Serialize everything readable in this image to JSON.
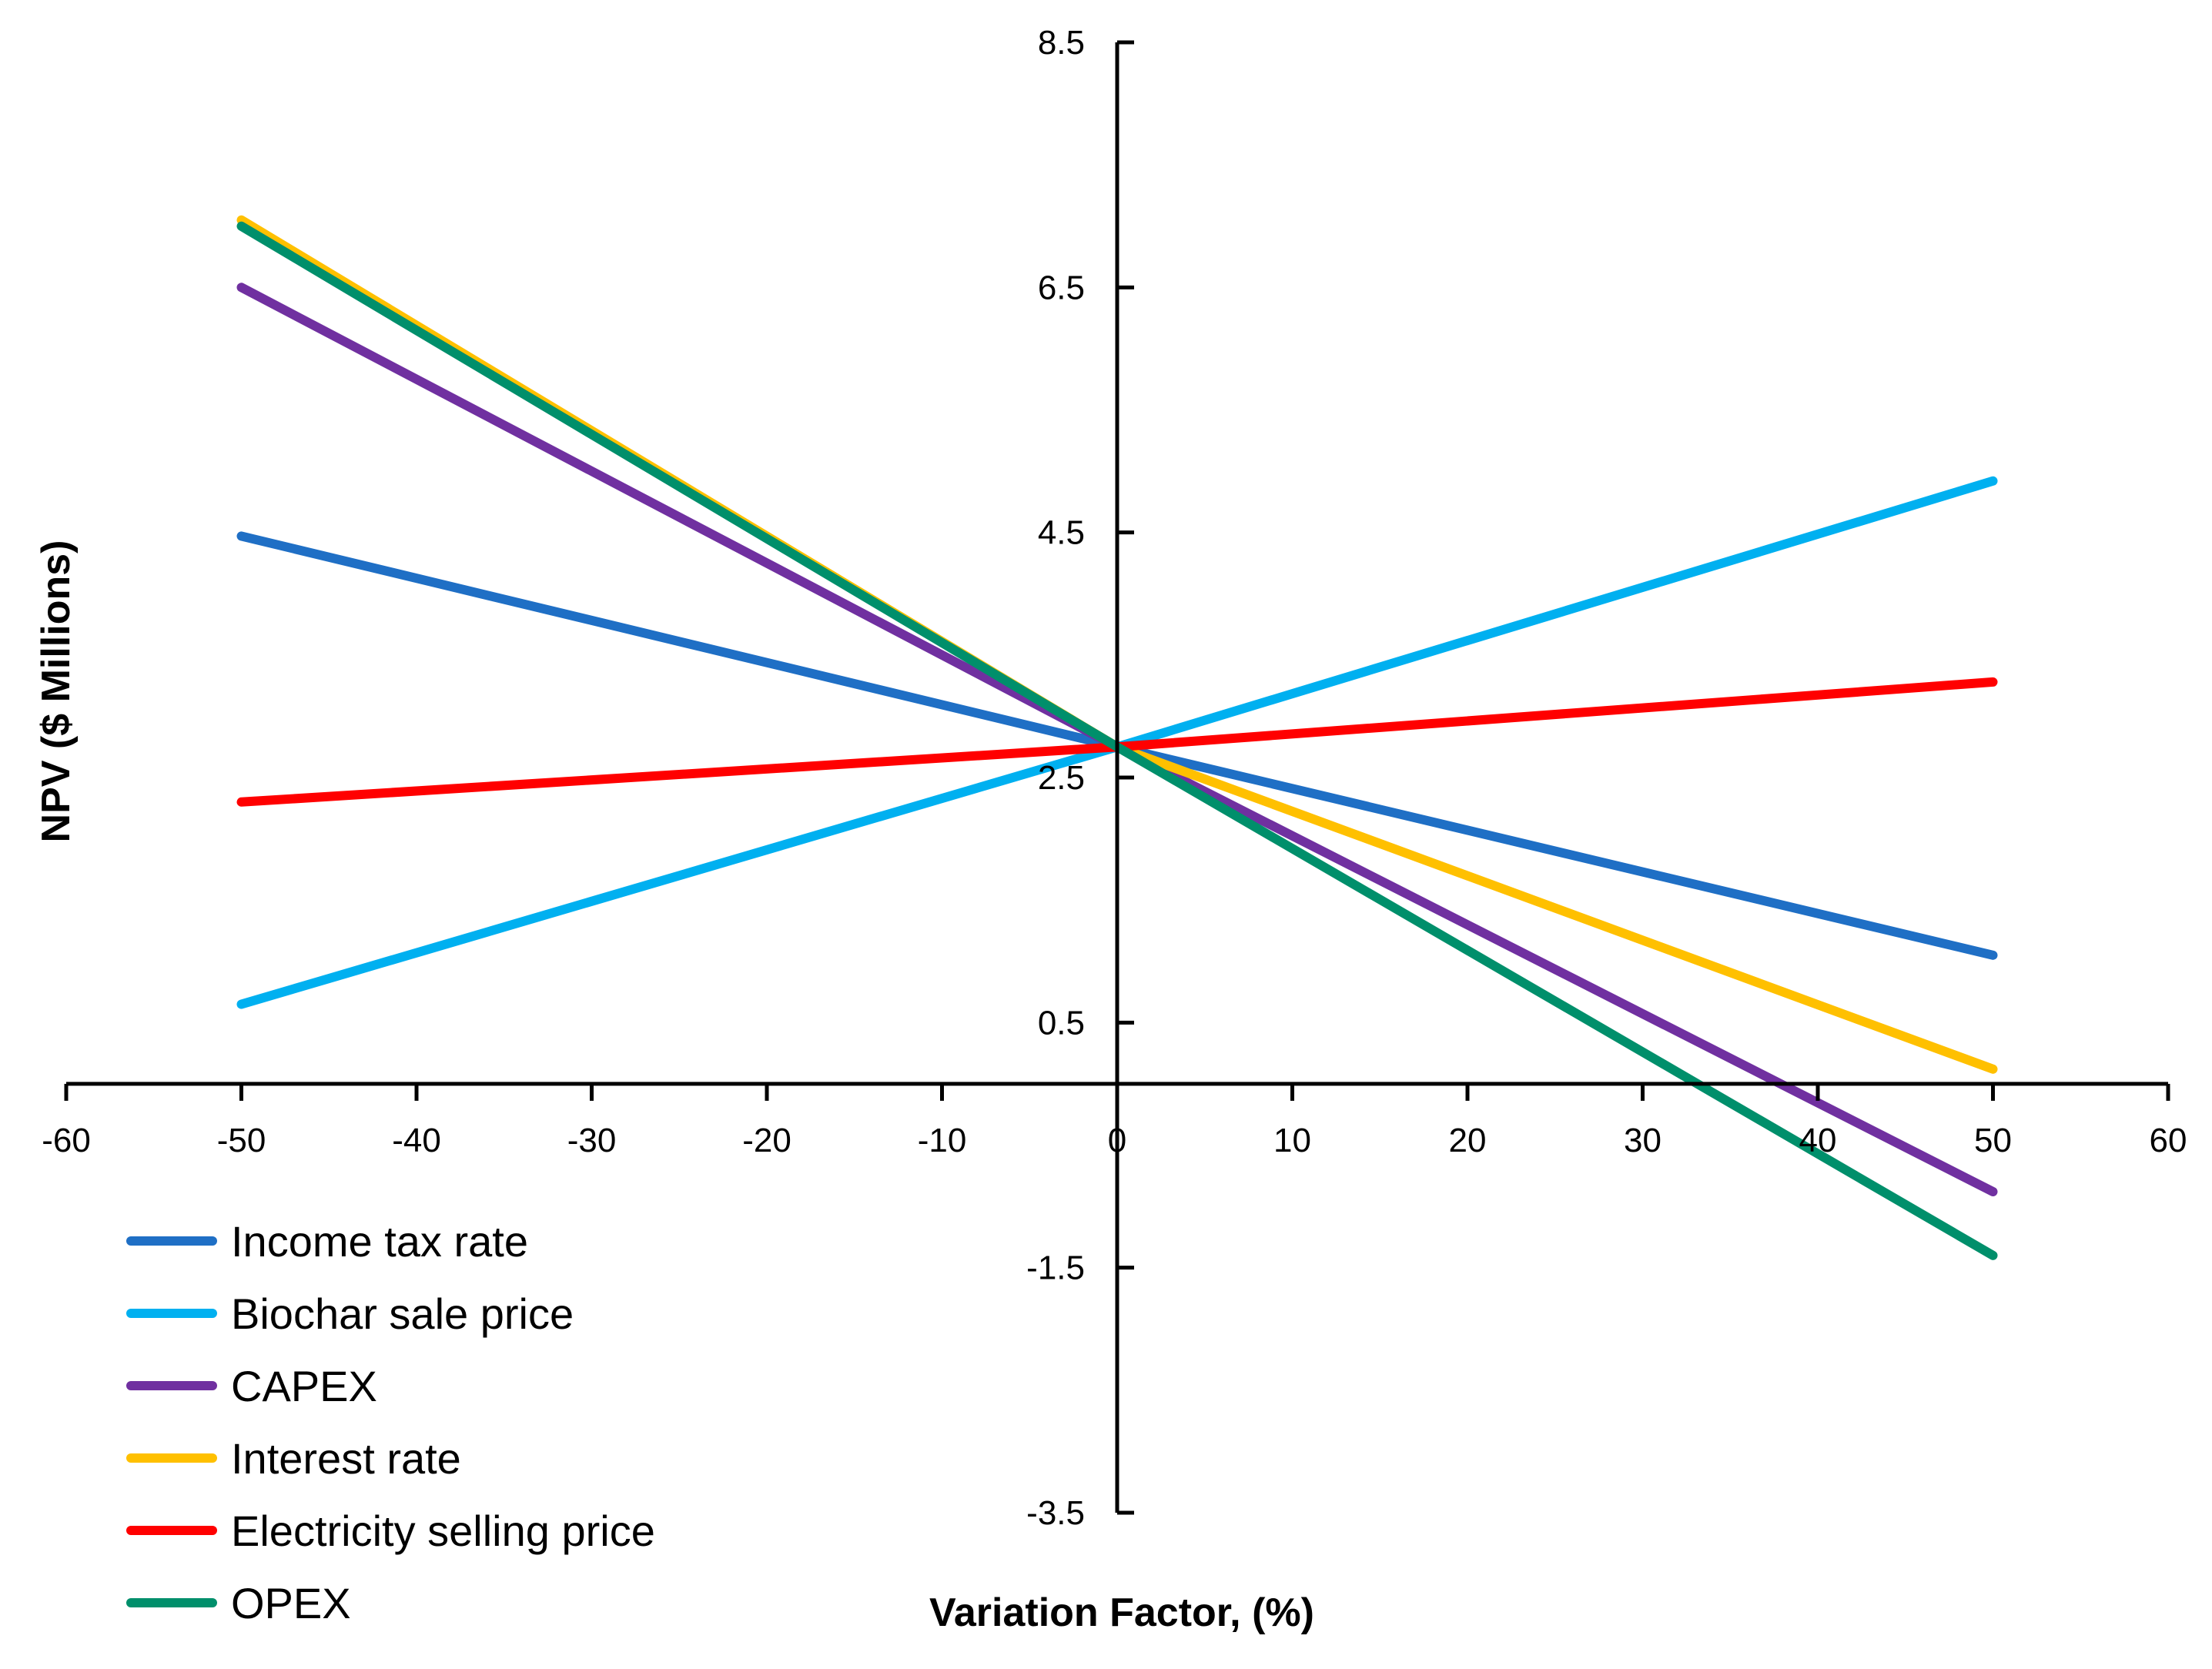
{
  "chart_data": {
    "type": "line",
    "title": "",
    "xlabel": "Variation Factor, (%)",
    "ylabel": "NPV ($ Millions)",
    "xlim": [
      -60,
      60
    ],
    "ylim": [
      -3.5,
      8.5
    ],
    "x_ticks": [
      -60,
      -50,
      -40,
      -30,
      -20,
      -10,
      0,
      10,
      20,
      30,
      40,
      50,
      60
    ],
    "y_ticks": [
      8.5,
      6.5,
      4.5,
      2.5,
      0.5,
      -1.5,
      -3.5
    ],
    "x_tick_labels": [
      "-60",
      "-50",
      "-40",
      "-30",
      "-20",
      "-10",
      "0",
      "10",
      "20",
      "30",
      "40",
      "50",
      "60"
    ],
    "y_tick_labels": [
      "8.5",
      "6.5",
      "4.5",
      "2.5",
      "0.5",
      "-1.5",
      "-3.5"
    ],
    "axes_cross_at": {
      "x": 0,
      "y": 0
    },
    "grid": false,
    "legend_position": "bottom-left",
    "x": [
      -50,
      0,
      50
    ],
    "series": [
      {
        "name": "Income tax rate",
        "color": "#1F6FC5",
        "values": [
          4.47,
          2.75,
          1.05
        ]
      },
      {
        "name": "Biochar sale price",
        "color": "#00B0F0",
        "values": [
          0.65,
          2.75,
          4.92
        ]
      },
      {
        "name": "CAPEX",
        "color": "#7030A0",
        "values": [
          6.5,
          2.75,
          -0.88
        ]
      },
      {
        "name": "Interest rate",
        "color": "#FFC000",
        "values": [
          7.05,
          2.75,
          0.12
        ]
      },
      {
        "name": "Electricity selling price",
        "color": "#FF0000",
        "values": [
          2.3,
          2.75,
          3.28
        ]
      },
      {
        "name": "OPEX",
        "color": "#008F6B",
        "values": [
          7.0,
          2.75,
          -1.4
        ]
      }
    ]
  }
}
